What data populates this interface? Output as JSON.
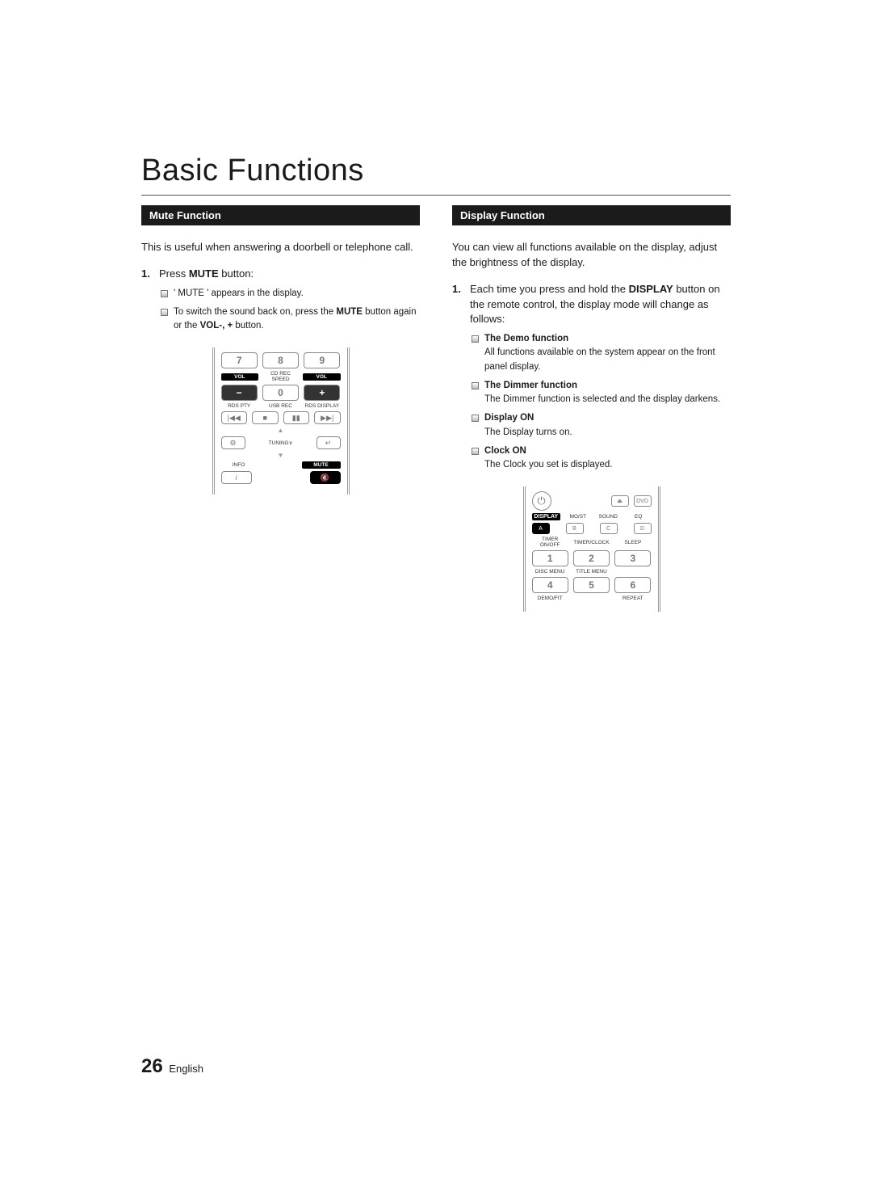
{
  "pageTitle": "Basic Functions",
  "pageNumber": "26",
  "pageLang": "English",
  "mute": {
    "heading": "Mute Function",
    "intro": "This is useful when answering a doorbell or telephone call.",
    "step1_pre": "Press ",
    "step1_bold": "MUTE",
    "step1_post": " button:",
    "sub1": "' MUTE ' appears in the display.",
    "sub2_pre": "To switch the sound back on, press the ",
    "sub2_b1": "MUTE",
    "sub2_mid": " button again or the ",
    "sub2_b2": "VOL-, +",
    "sub2_post": " button.",
    "remote": {
      "n7": "7",
      "n8": "8",
      "n9": "9",
      "n0": "0",
      "volLabel": "VOL",
      "cdRec": "CD REC SPEED",
      "minus": "−",
      "plus": "+",
      "rdsPty": "RDS PTY",
      "usbRec": "USB REC",
      "rdsDisp": "RDS DISPLAY",
      "prev": "|◀◀",
      "stopSq": "■",
      "pause": "▮▮",
      "next": "▶▶|",
      "up": "▲",
      "down": "▼",
      "tools": "TOOLS",
      "enter": "✓",
      "tuning": "TUNING∨",
      "info": "INFO",
      "infoI": "i",
      "muteLabel": "MUTE",
      "muteIcon": "🔇"
    }
  },
  "display": {
    "heading": "Display Function",
    "intro": "You can view all functions available on the display, adjust the brightness of the display.",
    "step1_pre": "Each time you press and hold the ",
    "step1_bold": "DISPLAY",
    "step1_post": " button on the remote control, the display mode will change as follows:",
    "items": [
      {
        "title": "The Demo function",
        "text": "All functions available on the system appear on the front panel display."
      },
      {
        "title": "The Dimmer function",
        "text": "The Dimmer function is selected and the display darkens."
      },
      {
        "title": "Display ON",
        "text": "The Display turns on."
      },
      {
        "title": "Clock ON",
        "text": "The Clock you set is displayed."
      }
    ],
    "remote": {
      "power": "⏻",
      "eject": "⏏",
      "dvd": "DVD",
      "dispLabel": "DISPLAY",
      "most": "MO/ST",
      "sound": "SOUND",
      "eq": "EQ",
      "a": "A",
      "b": "B",
      "c": "C",
      "d": "D",
      "timerOnOff": "TIMER ON/OFF",
      "timerClock": "TIMER/CLOCK",
      "sleep": "SLEEP",
      "n1": "1",
      "n2": "2",
      "n3": "3",
      "discMenu": "DISC MENU",
      "titleMenu": "TITLE MENU",
      "n4": "4",
      "n5": "5",
      "n6": "6",
      "demoFit": "DEMO/FIT",
      "repeat": "REPEAT"
    }
  }
}
